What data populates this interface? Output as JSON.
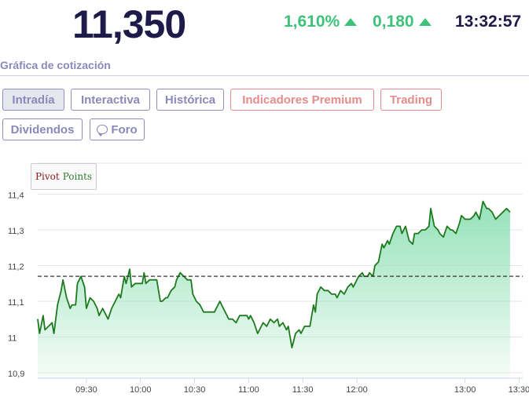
{
  "quote": {
    "price": "11,350",
    "change_pct": "1,610%",
    "change_abs": "0,180",
    "time": "13:32:57",
    "up_color": "#3ec27a"
  },
  "section": {
    "title": "Gráfica de cotización"
  },
  "tabs": [
    {
      "label": "Intradía",
      "active": true
    },
    {
      "label": "Interactiva"
    },
    {
      "label": "Histórica"
    },
    {
      "label": "Indicadores Premium",
      "premium": true
    },
    {
      "label": "Trading",
      "premium": true
    },
    {
      "label": "Dividendos"
    },
    {
      "label": "Foro",
      "icon": "chat-bubble-icon"
    }
  ],
  "legend": {
    "part1": "Pivot",
    "part2": "Points"
  },
  "chart_data": {
    "type": "area",
    "y_ticks": [
      "10,9",
      "11",
      "11,1",
      "11,2",
      "11,3",
      "11,4"
    ],
    "x_ticks": [
      "09:30",
      "10:00",
      "10:30",
      "11:00",
      "11:30",
      "12:00",
      "13:00",
      "13:30"
    ],
    "ylim": [
      10.9,
      11.4
    ],
    "pivot_value": 11.17,
    "line_color": "#1e7a1e",
    "fill_color": "#8fe0b4",
    "x_range": [
      "09:03",
      "13:32"
    ],
    "series": [
      {
        "points": [
          [
            "09:03",
            11.05
          ],
          [
            "09:04",
            11.01
          ],
          [
            "09:06",
            11.06
          ],
          [
            "09:07",
            11.02
          ],
          [
            "09:09",
            11.03
          ],
          [
            "09:11",
            11.04
          ],
          [
            "09:12",
            11.01
          ],
          [
            "09:14",
            11.09
          ],
          [
            "09:16",
            11.13
          ],
          [
            "09:17",
            11.16
          ],
          [
            "09:19",
            11.11
          ],
          [
            "09:21",
            11.08
          ],
          [
            "09:22",
            11.09
          ],
          [
            "09:24",
            11.09
          ],
          [
            "09:25",
            11.15
          ],
          [
            "09:27",
            11.17
          ],
          [
            "09:29",
            11.14
          ],
          [
            "09:30",
            11.08
          ],
          [
            "09:32",
            11.11
          ],
          [
            "09:34",
            11.1
          ],
          [
            "09:36",
            11.08
          ],
          [
            "09:37",
            11.06
          ],
          [
            "09:39",
            11.08
          ],
          [
            "09:40",
            11.07
          ],
          [
            "09:42",
            11.05
          ],
          [
            "09:44",
            11.08
          ],
          [
            "09:46",
            11.1
          ],
          [
            "09:48",
            11.12
          ],
          [
            "09:49",
            11.11
          ],
          [
            "09:51",
            11.17
          ],
          [
            "09:52",
            11.15
          ],
          [
            "09:54",
            11.19
          ],
          [
            "09:55",
            11.14
          ],
          [
            "09:57",
            11.15
          ],
          [
            "09:59",
            11.15
          ],
          [
            "10:01",
            11.15
          ],
          [
            "10:02",
            11.18
          ],
          [
            "10:03",
            11.15
          ],
          [
            "10:05",
            11.16
          ],
          [
            "10:07",
            11.16
          ],
          [
            "10:09",
            11.16
          ],
          [
            "10:11",
            11.1
          ],
          [
            "10:12",
            11.1
          ],
          [
            "10:14",
            11.11
          ],
          [
            "10:15",
            11.11
          ],
          [
            "10:17",
            11.13
          ],
          [
            "10:19",
            11.14
          ],
          [
            "10:20",
            11.16
          ],
          [
            "10:22",
            11.18
          ],
          [
            "10:24",
            11.17
          ],
          [
            "10:26",
            11.16
          ],
          [
            "10:28",
            11.16
          ],
          [
            "10:29",
            11.12
          ],
          [
            "10:31",
            11.1
          ],
          [
            "10:33",
            11.09
          ],
          [
            "10:35",
            11.07
          ],
          [
            "10:37",
            11.07
          ],
          [
            "10:39",
            11.07
          ],
          [
            "10:41",
            11.07
          ],
          [
            "10:43",
            11.09
          ],
          [
            "10:44",
            11.1
          ],
          [
            "10:46",
            11.08
          ],
          [
            "10:48",
            11.06
          ],
          [
            "10:49",
            11.05
          ],
          [
            "10:51",
            11.05
          ],
          [
            "10:53",
            11.04
          ],
          [
            "10:55",
            11.06
          ],
          [
            "10:57",
            11.06
          ],
          [
            "10:59",
            11.06
          ],
          [
            "11:00",
            11.05
          ],
          [
            "11:01",
            11.06
          ],
          [
            "11:03",
            11.04
          ],
          [
            "11:05",
            11.01
          ],
          [
            "11:07",
            11.03
          ],
          [
            "11:08",
            11.04
          ],
          [
            "11:10",
            11.03
          ],
          [
            "11:12",
            11.05
          ],
          [
            "11:14",
            11.04
          ],
          [
            "11:16",
            11.05
          ],
          [
            "11:17",
            11.03
          ],
          [
            "11:19",
            11.04
          ],
          [
            "11:21",
            11.02
          ],
          [
            "11:22",
            11.03
          ],
          [
            "11:24",
            10.97
          ],
          [
            "11:26",
            11.01
          ],
          [
            "11:28",
            11.02
          ],
          [
            "11:29",
            11.01
          ],
          [
            "11:31",
            11.03
          ],
          [
            "11:33",
            11.03
          ],
          [
            "11:34",
            11.03
          ],
          [
            "11:36",
            11.09
          ],
          [
            "11:37",
            11.07
          ],
          [
            "11:38",
            11.12
          ],
          [
            "11:40",
            11.14
          ],
          [
            "11:42",
            11.13
          ],
          [
            "11:44",
            11.13
          ],
          [
            "11:46",
            11.12
          ],
          [
            "11:48",
            11.12
          ],
          [
            "11:49",
            11.11
          ],
          [
            "11:51",
            11.13
          ],
          [
            "11:53",
            11.12
          ],
          [
            "11:55",
            11.14
          ],
          [
            "11:57",
            11.15
          ],
          [
            "11:58",
            11.14
          ],
          [
            "12:00",
            11.16
          ],
          [
            "12:01",
            11.17
          ],
          [
            "12:03",
            11.18
          ],
          [
            "12:04",
            11.17
          ],
          [
            "12:06",
            11.17
          ],
          [
            "12:07",
            11.18
          ],
          [
            "12:09",
            11.17
          ],
          [
            "12:10",
            11.2
          ],
          [
            "12:12",
            11.21
          ],
          [
            "12:14",
            11.26
          ],
          [
            "12:15",
            11.25
          ],
          [
            "12:17",
            11.27
          ],
          [
            "12:18",
            11.26
          ],
          [
            "12:20",
            11.29
          ],
          [
            "12:22",
            11.31
          ],
          [
            "12:24",
            11.31
          ],
          [
            "12:25",
            11.29
          ],
          [
            "12:27",
            11.31
          ],
          [
            "12:29",
            11.27
          ],
          [
            "12:31",
            11.26
          ],
          [
            "12:32",
            11.29
          ],
          [
            "12:34",
            11.29
          ],
          [
            "12:36",
            11.3
          ],
          [
            "12:38",
            11.3
          ],
          [
            "12:40",
            11.31
          ],
          [
            "12:41",
            11.36
          ],
          [
            "12:43",
            11.31
          ],
          [
            "12:45",
            11.3
          ],
          [
            "12:46",
            11.29
          ],
          [
            "12:48",
            11.28
          ],
          [
            "12:50",
            11.31
          ],
          [
            "12:52",
            11.3
          ],
          [
            "12:53",
            11.3
          ],
          [
            "12:55",
            11.29
          ],
          [
            "12:57",
            11.32
          ],
          [
            "12:58",
            11.34
          ],
          [
            "13:00",
            11.33
          ],
          [
            "13:02",
            11.33
          ],
          [
            "13:03",
            11.33
          ],
          [
            "13:05",
            11.34
          ],
          [
            "13:06",
            11.35
          ],
          [
            "13:08",
            11.33
          ],
          [
            "13:10",
            11.38
          ],
          [
            "13:12",
            11.36
          ],
          [
            "13:13",
            11.36
          ],
          [
            "13:15",
            11.35
          ],
          [
            "13:17",
            11.33
          ],
          [
            "13:19",
            11.34
          ],
          [
            "13:21",
            11.35
          ],
          [
            "13:23",
            11.36
          ],
          [
            "13:25",
            11.35
          ]
        ]
      }
    ]
  }
}
